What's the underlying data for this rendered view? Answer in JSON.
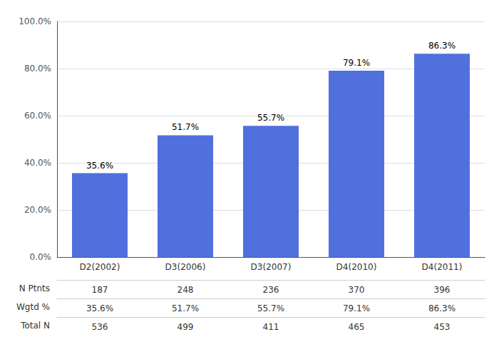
{
  "chart_data": {
    "type": "bar",
    "categories": [
      "D2(2002)",
      "D3(2006)",
      "D3(2007)",
      "D4(2010)",
      "D4(2011)"
    ],
    "values": [
      35.6,
      51.7,
      55.7,
      79.1,
      86.3
    ],
    "value_labels": [
      "35.6%",
      "51.7%",
      "55.7%",
      "79.1%",
      "86.3%"
    ],
    "data_labels": true,
    "ylim": [
      0,
      100
    ],
    "yticks": [
      {
        "value": 0,
        "label": "0.0%"
      },
      {
        "value": 20,
        "label": "20.0%"
      },
      {
        "value": 40,
        "label": "40.0%"
      },
      {
        "value": 60,
        "label": "60.0%"
      },
      {
        "value": 80,
        "label": "80.0%"
      },
      {
        "value": 100,
        "label": "100.0%"
      }
    ],
    "grid": true,
    "table": [
      {
        "label": "N Ptnts",
        "values": [
          187,
          248,
          236,
          370,
          396
        ]
      },
      {
        "label": "Wgtd %",
        "values": [
          "35.6%",
          "51.7%",
          "55.7%",
          "79.1%",
          "86.3%"
        ]
      },
      {
        "label": "Total N",
        "values": [
          536,
          499,
          411,
          465,
          453
        ]
      }
    ]
  }
}
